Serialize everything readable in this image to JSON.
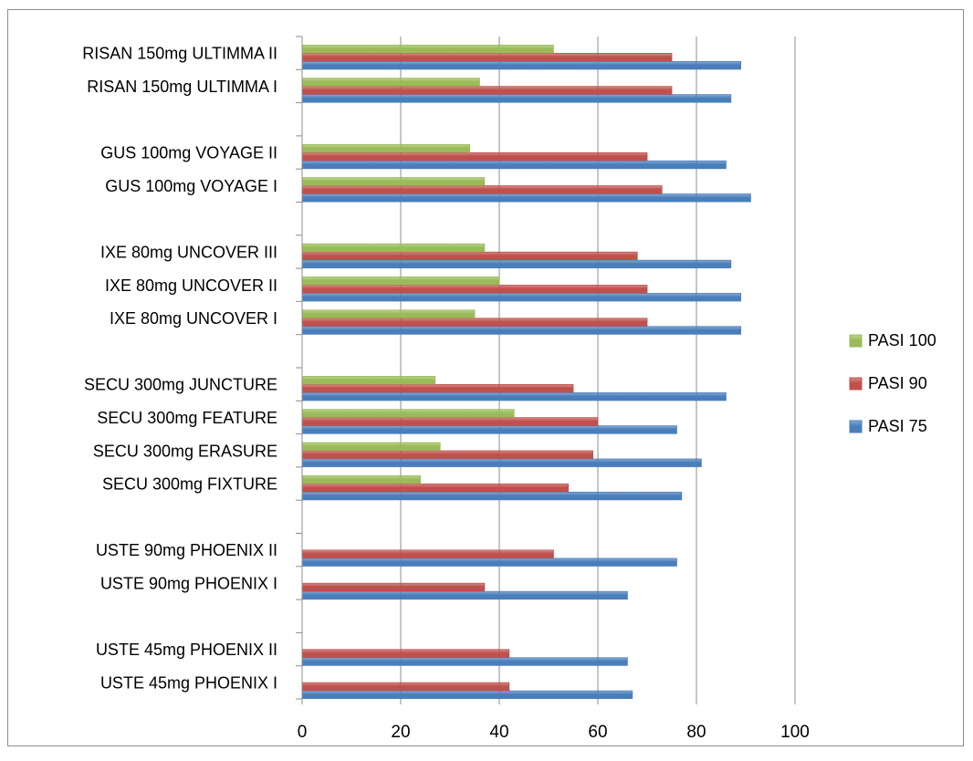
{
  "chart_data": {
    "type": "bar",
    "orientation": "horizontal",
    "title": "",
    "categories": [
      "USTE 45mg PHOENIX I",
      "USTE 45mg PHOENIX II",
      "",
      "USTE 90mg PHOENIX I",
      "USTE 90mg PHOENIX II",
      "",
      "SECU 300mg FIXTURE",
      "SECU 300mg ERASURE",
      "SECU 300mg FEATURE",
      "SECU 300mg JUNCTURE",
      "",
      "IXE 80mg UNCOVER I",
      "IXE 80mg UNCOVER II",
      "IXE 80mg UNCOVER III",
      "",
      "GUS 100mg VOYAGE I",
      "GUS 100mg VOYAGE II",
      "",
      "RISAN 150mg ULTIMMA I",
      "RISAN 150mg ULTIMMA II"
    ],
    "series": [
      {
        "name": "PASI 75",
        "color": "#4a7ebb",
        "values": [
          67,
          66,
          null,
          66,
          76,
          null,
          77,
          81,
          76,
          86,
          null,
          89,
          89,
          87,
          null,
          91,
          86,
          null,
          87,
          89
        ]
      },
      {
        "name": "PASI 90",
        "color": "#c0504d",
        "values": [
          42,
          42,
          null,
          37,
          51,
          null,
          54,
          59,
          60,
          55,
          null,
          70,
          70,
          68,
          null,
          73,
          70,
          null,
          75,
          75
        ]
      },
      {
        "name": "PASI 100",
        "color": "#9bbb59",
        "values": [
          null,
          null,
          null,
          null,
          null,
          null,
          24,
          28,
          43,
          27,
          null,
          35,
          40,
          37,
          null,
          37,
          34,
          null,
          36,
          51
        ]
      }
    ],
    "xlim": [
      0,
      100
    ],
    "xticks": [
      0,
      20,
      40,
      60,
      80,
      100
    ],
    "xlabel": "",
    "ylabel": "",
    "grid": true,
    "legend": "right"
  }
}
